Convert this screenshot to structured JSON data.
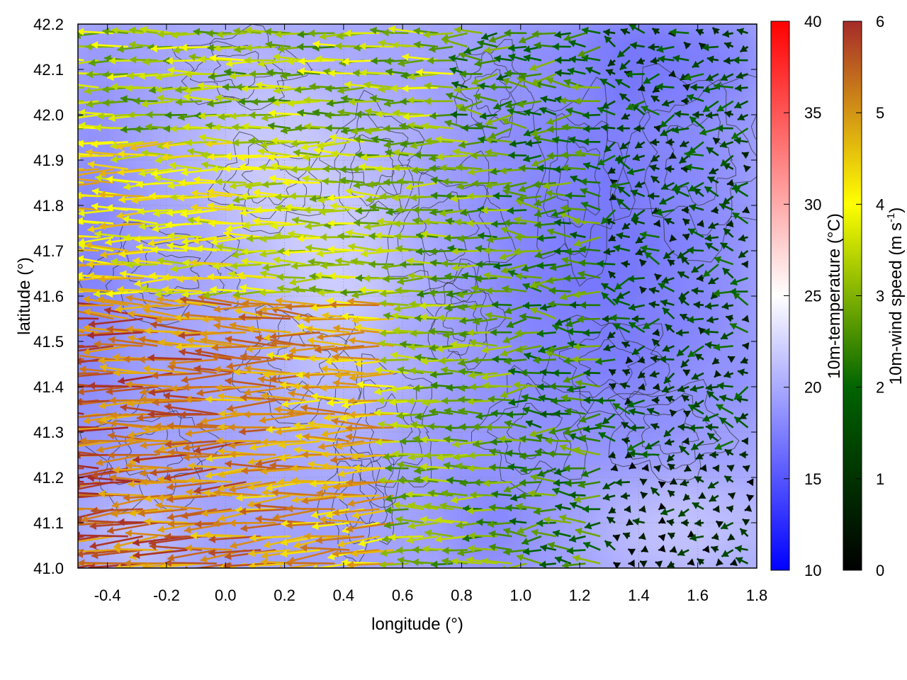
{
  "chart_data": {
    "type": "heatmap",
    "subtype": "wind-vector-field-over-temperature-map-with-contours",
    "xlabel": "longitude (°)",
    "ylabel": "latitude (°)",
    "xlim": [
      -0.5,
      1.8
    ],
    "ylim": [
      41.0,
      42.2
    ],
    "xticks": [
      "-0.4",
      "-0.2",
      "0.0",
      "0.2",
      "0.4",
      "0.6",
      "0.8",
      "1.0",
      "1.2",
      "1.4",
      "1.6",
      "1.8"
    ],
    "yticks": [
      "41.0",
      "41.1",
      "41.2",
      "41.3",
      "41.4",
      "41.5",
      "41.6",
      "41.7",
      "41.8",
      "41.9",
      "42.0",
      "42.1",
      "42.2"
    ],
    "grid": true,
    "temperature_colorbar": {
      "label": "10m-temperature (°C)",
      "range": [
        10,
        40
      ],
      "ticks": [
        "10",
        "15",
        "20",
        "25",
        "30",
        "35",
        "40"
      ],
      "colors": [
        "#0000ff",
        "#ffffff",
        "#ff0000"
      ]
    },
    "wind_colorbar": {
      "label_main": "10m-wind speed (m s",
      "label_sup": "-1",
      "label_end": ")",
      "range": [
        0,
        6
      ],
      "ticks": [
        "0",
        "1",
        "2",
        "3",
        "4",
        "5",
        "6"
      ],
      "colors": [
        "#000000",
        "#006400",
        "#ffff00",
        "#a52a2a"
      ]
    },
    "temperature_field_description": "mostly 17-22 °C; cooler (bluer) east of 1.0° and north-east; warmer (whiter) near 0.2-0.5° lon, 41.5-42.0° lat and south-east corner",
    "wind_field_description": "strong westward flow (5-6 m/s) in south-west (lon < 0.6, lat < 41.6); moderate (3-4 m/s) westward flow across center; weak (0-2 m/s) variable winds in east"
  }
}
